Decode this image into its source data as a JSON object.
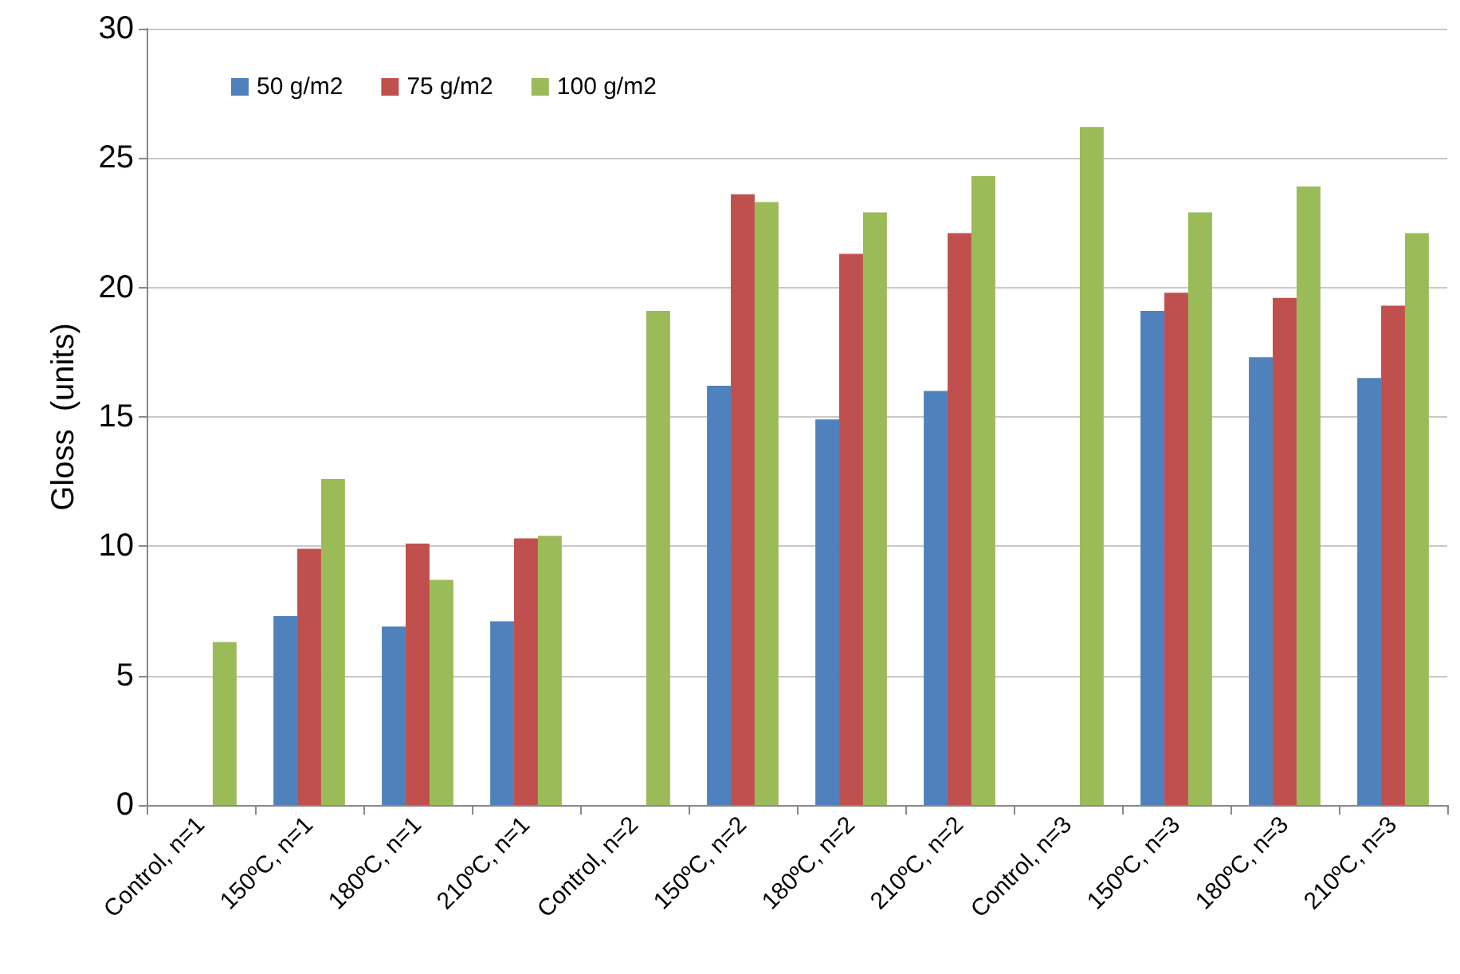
{
  "chart_data": {
    "type": "bar",
    "ylabel": "Gloss  (units)",
    "categories": [
      "Control, n=1",
      "150ºC, n=1",
      "180ºC, n=1",
      "210ºC, n=1",
      "Control, n=2",
      "150ºC, n=2",
      "180ºC, n=2",
      "210ºC, n=2",
      "Control, n=3",
      "150ºC, n=3",
      "180ºC, n=3",
      "210ºC, n=3"
    ],
    "series": [
      {
        "name": "50 g/m2",
        "color": "#4f81bd",
        "values": [
          null,
          7.3,
          6.9,
          7.1,
          null,
          16.2,
          14.9,
          16.0,
          null,
          19.1,
          17.3,
          16.5
        ]
      },
      {
        "name": "75 g/m2",
        "color": "#c0504d",
        "values": [
          null,
          9.9,
          10.1,
          10.3,
          null,
          23.6,
          21.3,
          22.1,
          null,
          19.8,
          19.6,
          19.3
        ]
      },
      {
        "name": "100 g/m2",
        "color": "#9bbb59",
        "values": [
          6.3,
          12.6,
          8.7,
          10.4,
          19.1,
          23.3,
          22.9,
          24.3,
          26.2,
          22.9,
          23.9,
          22.1
        ]
      }
    ],
    "ylim": [
      0,
      30
    ],
    "yticks": [
      0,
      5,
      10,
      15,
      20,
      25,
      30
    ],
    "grid": "y",
    "legend": "top left"
  }
}
